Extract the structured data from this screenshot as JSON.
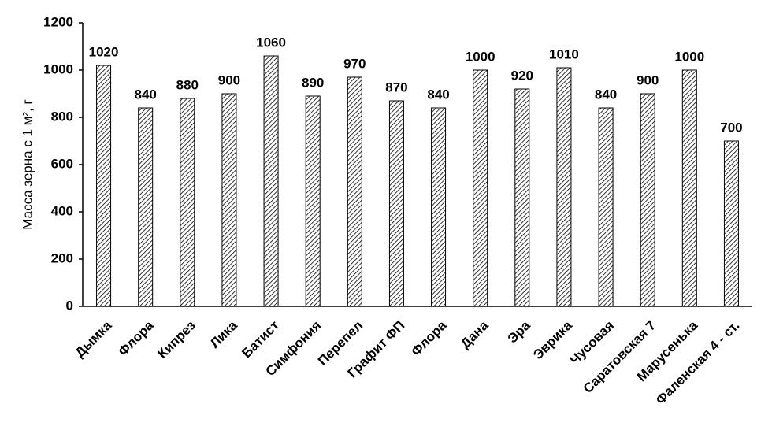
{
  "chart_data": {
    "type": "bar",
    "y_label": "Масса зерна с 1 м², г",
    "categories": [
      "Дымка",
      "Флора",
      "Кипрез",
      "Лика",
      "Батист",
      "Симфония",
      "Перепел",
      "Графит ФП",
      "Флора",
      "Дана",
      "Эра",
      "Эврика",
      "Чусовая",
      "Саратовская 7",
      "Марусенька",
      "Фаленская 4 - ст."
    ],
    "values": [
      1020,
      840,
      880,
      900,
      1060,
      890,
      970,
      870,
      840,
      1000,
      920,
      1010,
      840,
      900,
      1000,
      700
    ],
    "color": "#000000",
    "ylim": [
      0,
      1200
    ],
    "yticks": [
      0,
      200,
      400,
      600,
      800,
      1000,
      1200
    ],
    "grid": false
  }
}
